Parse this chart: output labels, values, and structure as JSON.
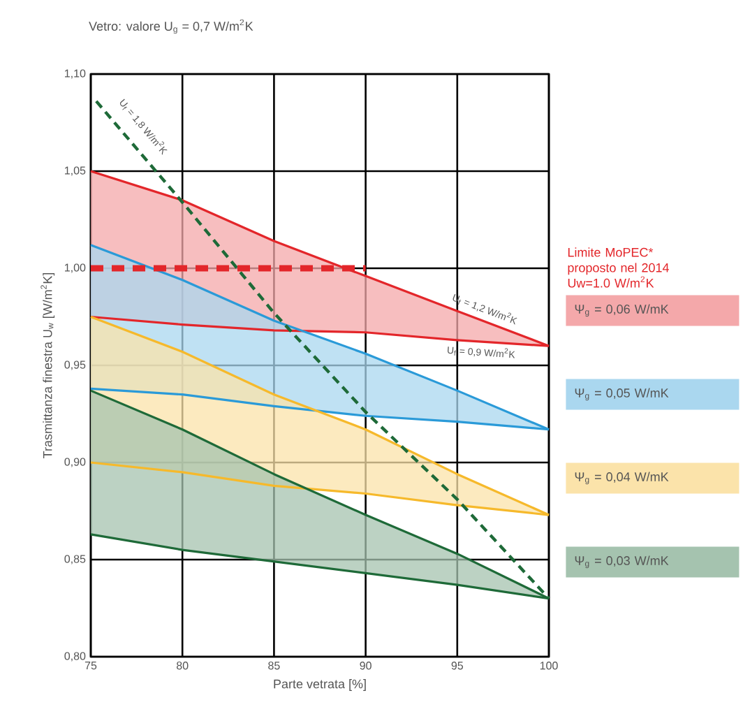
{
  "chart_data": {
    "type": "line",
    "title": "Vetro: valore U$_{g}$ = 0,7 W/m$^{2}$K",
    "xlabel": "Parte vetrata [%]",
    "ylabel": "Trasmittanza finestra U$_{w}$ [W/m$^{2}$K]",
    "x": [
      75,
      80,
      85,
      90,
      95,
      100
    ],
    "series": [
      {
        "name": "Ψ$_{g}$ = 0,06 W/mK",
        "color": "#e3262a",
        "values": [
          1.05,
          1.035,
          1.014,
          0.996,
          0.978,
          0.96
        ],
        "upper": [
          1.05,
          1.035,
          1.014,
          0.996,
          0.978,
          0.96
        ],
        "lower": [
          0.975,
          0.971,
          0.968,
          0.967,
          0.963,
          0.96
        ]
      },
      {
        "color": "#e3262a",
        "values": [
          0.975,
          0.971,
          0.968,
          0.967,
          0.963,
          0.96
        ]
      },
      {
        "name": "Ψ$_{g}$ = 0,05 W/mK",
        "color": "#2a9ad8",
        "values": [
          1.012,
          0.994,
          0.973,
          0.956,
          0.937,
          0.917
        ],
        "upper": [
          1.012,
          0.994,
          0.973,
          0.956,
          0.937,
          0.917
        ],
        "lower": [
          0.938,
          0.935,
          0.929,
          0.924,
          0.921,
          0.917
        ]
      },
      {
        "color": "#2a9ad8",
        "values": [
          0.938,
          0.935,
          0.929,
          0.924,
          0.921,
          0.917
        ]
      },
      {
        "name": "Ψ$_{g}$ = 0,04 W/mK",
        "color": "#f6b92b",
        "values": [
          0.975,
          0.957,
          0.935,
          0.917,
          0.894,
          0.873
        ],
        "upper": [
          0.975,
          0.957,
          0.935,
          0.917,
          0.894,
          0.873
        ],
        "lower": [
          0.9,
          0.895,
          0.888,
          0.884,
          0.878,
          0.873
        ]
      },
      {
        "color": "#f6b92b",
        "values": [
          0.9,
          0.895,
          0.888,
          0.884,
          0.878,
          0.873
        ]
      },
      {
        "name": "Ψ$_{g}$ = 0,03 W/mK",
        "color": "#1e6a38",
        "values": [
          0.937,
          0.917,
          0.894,
          0.873,
          0.853,
          0.83
        ],
        "upper": [
          0.937,
          0.917,
          0.894,
          0.873,
          0.853,
          0.83
        ],
        "lower": [
          0.863,
          0.855,
          0.849,
          0.843,
          0.837,
          0.83
        ]
      },
      {
        "color": "#1e6a38",
        "values": [
          0.863,
          0.855,
          0.849,
          0.843,
          0.837,
          0.83
        ]
      },
      {
        "color": "#1e6a38",
        "line_style": "dashed",
        "x": [
          75.3,
          80,
          85,
          90,
          95,
          100
        ],
        "values": [
          1.086,
          1.034,
          0.977,
          0.926,
          0.881,
          0.83
        ]
      },
      {
        "name": "Limite MoPEC* proposto nel 2014 Uw=1.0 W/m$^{2}$K",
        "color": "#e3262a",
        "line_style": "dashed",
        "x": [
          75,
          90
        ],
        "values": [
          1.0,
          1.0
        ]
      }
    ],
    "annotations": [
      "U$_{f}$ = 1,8 W/m$^{2}$K",
      "U$_{f}$ = 1,2 W/m$^{2}$K",
      "U$_{f}$ = 0,9 W/m$^{2}$K"
    ],
    "xlim": [
      75,
      100
    ],
    "ylim": [
      0.8,
      1.1
    ],
    "xticks": [
      75,
      80,
      85,
      90,
      95,
      100
    ],
    "yticks": [
      {
        "value": 0.8,
        "label": "0,80"
      },
      {
        "value": 0.85,
        "label": "0,85"
      },
      {
        "value": 0.9,
        "label": "0,90"
      },
      {
        "value": 0.95,
        "label": "0,95"
      },
      {
        "value": 1.0,
        "label": "1,00"
      },
      {
        "value": 1.05,
        "label": "1,05"
      },
      {
        "value": 1.1,
        "label": "1,10"
      }
    ],
    "grid": true,
    "legend": "right"
  }
}
